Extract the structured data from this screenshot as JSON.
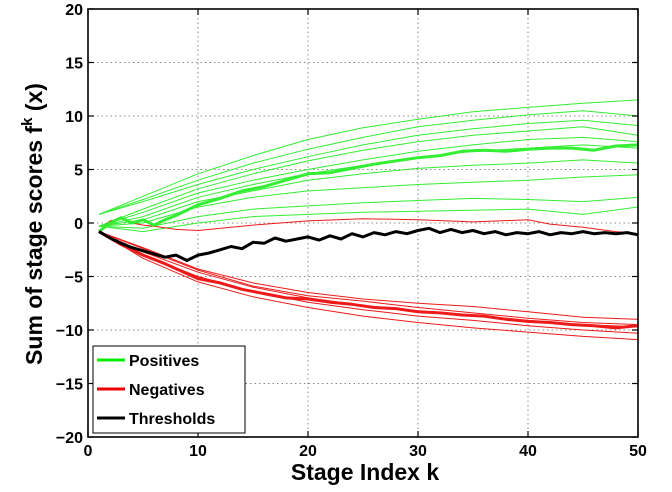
{
  "chart_data": {
    "type": "line",
    "title": "",
    "xlabel": "Stage Index k",
    "ylabel_main": "Sum of stage scores f",
    "ylabel_sup": "k",
    "ylabel_tail": " (x)",
    "xlim": [
      0,
      50
    ],
    "ylim": [
      -20,
      20
    ],
    "xticks": [
      0,
      10,
      20,
      30,
      40,
      50
    ],
    "yticks": [
      -20,
      -15,
      -10,
      -5,
      0,
      5,
      10,
      15,
      20
    ],
    "xtick_labels": [
      "0",
      "10",
      "20",
      "30",
      "40",
      "50"
    ],
    "ytick_labels": [
      "−20",
      "−15",
      "−10",
      "−5",
      "0",
      "5",
      "10",
      "15",
      "20"
    ],
    "grid": true,
    "legend_position": "bottom-left",
    "legend": [
      {
        "label": "Positives",
        "color": "#00ee00"
      },
      {
        "label": "Negatives",
        "color": "#ee0000"
      },
      {
        "label": "Thresholds",
        "color": "#000000"
      }
    ],
    "colors": {
      "positives": "#33ee33",
      "negatives": "#ee1a1a",
      "thresholds": "#000000"
    },
    "series": [
      {
        "group": "positives",
        "bold": false,
        "values": [
          [
            1,
            0.8
          ],
          [
            5,
            2.5
          ],
          [
            10,
            4.6
          ],
          [
            15,
            6.3
          ],
          [
            20,
            7.8
          ],
          [
            25,
            8.9
          ],
          [
            30,
            9.7
          ],
          [
            35,
            10.4
          ],
          [
            40,
            10.8
          ],
          [
            45,
            11.2
          ],
          [
            50,
            11.5
          ]
        ]
      },
      {
        "group": "positives",
        "bold": false,
        "values": [
          [
            1,
            0.8
          ],
          [
            5,
            2.2
          ],
          [
            10,
            4.0
          ],
          [
            15,
            5.6
          ],
          [
            20,
            6.9
          ],
          [
            25,
            8.0
          ],
          [
            30,
            9.0
          ],
          [
            35,
            9.6
          ],
          [
            40,
            10.1
          ],
          [
            45,
            10.5
          ],
          [
            50,
            10.0
          ]
        ]
      },
      {
        "group": "positives",
        "bold": false,
        "values": [
          [
            1,
            0.8
          ],
          [
            5,
            2.0
          ],
          [
            10,
            3.6
          ],
          [
            15,
            5.0
          ],
          [
            20,
            6.2
          ],
          [
            25,
            7.3
          ],
          [
            30,
            8.2
          ],
          [
            35,
            8.8
          ],
          [
            40,
            9.3
          ],
          [
            45,
            9.6
          ],
          [
            50,
            9.1
          ]
        ]
      },
      {
        "group": "positives",
        "bold": false,
        "values": [
          [
            1,
            -0.3
          ],
          [
            5,
            1.3
          ],
          [
            10,
            3.2
          ],
          [
            15,
            4.6
          ],
          [
            20,
            5.8
          ],
          [
            25,
            6.8
          ],
          [
            30,
            7.6
          ],
          [
            35,
            8.2
          ],
          [
            40,
            8.6
          ],
          [
            45,
            9.0
          ],
          [
            50,
            8.2
          ]
        ]
      },
      {
        "group": "positives",
        "bold": false,
        "values": [
          [
            1,
            -0.3
          ],
          [
            5,
            1.0
          ],
          [
            10,
            2.8
          ],
          [
            15,
            4.0
          ],
          [
            20,
            5.0
          ],
          [
            25,
            5.9
          ],
          [
            30,
            6.7
          ],
          [
            35,
            7.3
          ],
          [
            40,
            7.8
          ],
          [
            45,
            8.0
          ],
          [
            50,
            7.6
          ]
        ]
      },
      {
        "group": "positives",
        "bold": false,
        "values": [
          [
            1,
            -0.3
          ],
          [
            5,
            0.6
          ],
          [
            10,
            2.4
          ],
          [
            15,
            3.6
          ],
          [
            20,
            4.6
          ],
          [
            25,
            5.4
          ],
          [
            30,
            6.1
          ],
          [
            35,
            6.7
          ],
          [
            40,
            7.0
          ],
          [
            45,
            7.3
          ],
          [
            50,
            7.0
          ]
        ]
      },
      {
        "group": "positives",
        "bold": false,
        "values": [
          [
            1,
            -0.3
          ],
          [
            5,
            0.3
          ],
          [
            10,
            2.0
          ],
          [
            15,
            3.0
          ],
          [
            20,
            4.0
          ],
          [
            25,
            4.6
          ],
          [
            30,
            5.1
          ],
          [
            35,
            5.4
          ],
          [
            40,
            5.6
          ],
          [
            45,
            5.9
          ],
          [
            50,
            5.6
          ]
        ]
      },
      {
        "group": "positives",
        "bold": false,
        "values": [
          [
            1,
            -0.3
          ],
          [
            5,
            0.0
          ],
          [
            10,
            1.5
          ],
          [
            15,
            2.4
          ],
          [
            20,
            3.0
          ],
          [
            25,
            3.3
          ],
          [
            30,
            3.6
          ],
          [
            35,
            3.8
          ],
          [
            40,
            4.0
          ],
          [
            45,
            4.3
          ],
          [
            50,
            4.5
          ]
        ]
      },
      {
        "group": "positives",
        "bold": false,
        "values": [
          [
            1,
            -0.3
          ],
          [
            5,
            -0.5
          ],
          [
            10,
            0.6
          ],
          [
            15,
            1.3
          ],
          [
            20,
            1.6
          ],
          [
            25,
            1.9
          ],
          [
            30,
            2.1
          ],
          [
            35,
            2.3
          ],
          [
            40,
            2.2
          ],
          [
            45,
            2.0
          ],
          [
            50,
            2.4
          ]
        ]
      },
      {
        "group": "positives",
        "bold": false,
        "values": [
          [
            1,
            -0.3
          ],
          [
            5,
            -0.8
          ],
          [
            10,
            0.0
          ],
          [
            15,
            0.6
          ],
          [
            20,
            0.8
          ],
          [
            25,
            1.0
          ],
          [
            30,
            1.1
          ],
          [
            35,
            1.2
          ],
          [
            40,
            1.3
          ],
          [
            45,
            0.8
          ],
          [
            50,
            1.5
          ]
        ]
      },
      {
        "group": "positives",
        "bold": true,
        "values": [
          [
            1,
            -0.8
          ],
          [
            2,
            0.0
          ],
          [
            3,
            0.5
          ],
          [
            4,
            0.0
          ],
          [
            5,
            0.3
          ],
          [
            6,
            -0.2
          ],
          [
            7,
            0.3
          ],
          [
            8,
            0.7
          ],
          [
            10,
            1.7
          ],
          [
            12,
            2.3
          ],
          [
            14,
            3.0
          ],
          [
            16,
            3.4
          ],
          [
            18,
            4.0
          ],
          [
            20,
            4.6
          ],
          [
            22,
            4.7
          ],
          [
            24,
            5.1
          ],
          [
            26,
            5.5
          ],
          [
            28,
            5.8
          ],
          [
            30,
            6.1
          ],
          [
            32,
            6.3
          ],
          [
            34,
            6.7
          ],
          [
            36,
            6.8
          ],
          [
            38,
            6.7
          ],
          [
            40,
            6.9
          ],
          [
            42,
            7.0
          ],
          [
            44,
            7.0
          ],
          [
            46,
            6.8
          ],
          [
            48,
            7.2
          ],
          [
            50,
            7.3
          ]
        ]
      },
      {
        "group": "negatives",
        "bold": false,
        "values": [
          [
            1,
            -0.8
          ],
          [
            2,
            0.2
          ],
          [
            3,
            0.4
          ],
          [
            4,
            0.0
          ],
          [
            5,
            -0.2
          ],
          [
            6,
            -0.3
          ],
          [
            8,
            -0.6
          ],
          [
            10,
            -0.7
          ],
          [
            15,
            -0.2
          ],
          [
            20,
            0.2
          ],
          [
            25,
            0.4
          ],
          [
            30,
            0.3
          ],
          [
            35,
            0.1
          ],
          [
            40,
            0.3
          ],
          [
            42,
            -0.1
          ],
          [
            45,
            -0.4
          ],
          [
            48,
            -0.8
          ],
          [
            50,
            -1.0
          ]
        ]
      },
      {
        "group": "negatives",
        "bold": false,
        "values": [
          [
            1,
            -0.8
          ],
          [
            5,
            -2.3
          ],
          [
            10,
            -4.3
          ],
          [
            15,
            -5.6
          ],
          [
            20,
            -6.5
          ],
          [
            25,
            -7.1
          ],
          [
            30,
            -7.5
          ],
          [
            35,
            -7.8
          ],
          [
            40,
            -8.3
          ],
          [
            45,
            -8.8
          ],
          [
            50,
            -9.0
          ]
        ]
      },
      {
        "group": "negatives",
        "bold": false,
        "values": [
          [
            1,
            -0.8
          ],
          [
            5,
            -2.7
          ],
          [
            10,
            -4.6
          ],
          [
            15,
            -6.0
          ],
          [
            20,
            -7.0
          ],
          [
            25,
            -7.7
          ],
          [
            30,
            -8.2
          ],
          [
            35,
            -8.6
          ],
          [
            40,
            -9.1
          ],
          [
            45,
            -9.5
          ],
          [
            50,
            -9.7
          ]
        ]
      },
      {
        "group": "negatives",
        "bold": false,
        "values": [
          [
            1,
            -0.8
          ],
          [
            5,
            -3.0
          ],
          [
            10,
            -5.0
          ],
          [
            15,
            -6.4
          ],
          [
            20,
            -7.4
          ],
          [
            25,
            -8.1
          ],
          [
            30,
            -8.7
          ],
          [
            35,
            -9.1
          ],
          [
            40,
            -9.6
          ],
          [
            45,
            -10.0
          ],
          [
            50,
            -10.3
          ]
        ]
      },
      {
        "group": "negatives",
        "bold": false,
        "values": [
          [
            1,
            -0.8
          ],
          [
            5,
            -3.3
          ],
          [
            10,
            -5.5
          ],
          [
            15,
            -6.9
          ],
          [
            20,
            -7.9
          ],
          [
            25,
            -8.7
          ],
          [
            30,
            -9.3
          ],
          [
            35,
            -9.8
          ],
          [
            40,
            -10.2
          ],
          [
            45,
            -10.6
          ],
          [
            50,
            -10.9
          ]
        ]
      },
      {
        "group": "negatives",
        "bold": false,
        "values": [
          [
            1,
            -0.8
          ],
          [
            5,
            -2.4
          ],
          [
            10,
            -4.4
          ],
          [
            15,
            -5.9
          ],
          [
            20,
            -6.8
          ],
          [
            25,
            -7.3
          ],
          [
            30,
            -7.9
          ],
          [
            35,
            -8.4
          ],
          [
            40,
            -8.9
          ],
          [
            45,
            -9.3
          ],
          [
            50,
            -9.5
          ]
        ]
      },
      {
        "group": "negatives",
        "bold": true,
        "values": [
          [
            1,
            -0.8
          ],
          [
            3,
            -2.0
          ],
          [
            5,
            -3.0
          ],
          [
            7,
            -3.8
          ],
          [
            10,
            -5.2
          ],
          [
            12,
            -5.6
          ],
          [
            14,
            -6.2
          ],
          [
            16,
            -6.6
          ],
          [
            18,
            -7.0
          ],
          [
            20,
            -7.1
          ],
          [
            22,
            -7.4
          ],
          [
            24,
            -7.6
          ],
          [
            26,
            -7.9
          ],
          [
            28,
            -8.0
          ],
          [
            30,
            -8.3
          ],
          [
            32,
            -8.4
          ],
          [
            34,
            -8.6
          ],
          [
            36,
            -8.7
          ],
          [
            38,
            -9.0
          ],
          [
            40,
            -9.2
          ],
          [
            42,
            -9.3
          ],
          [
            44,
            -9.5
          ],
          [
            46,
            -9.6
          ],
          [
            48,
            -9.8
          ],
          [
            50,
            -9.6
          ]
        ]
      },
      {
        "group": "thresholds",
        "bold": true,
        "values": [
          [
            1,
            -0.8
          ],
          [
            2,
            -1.4
          ],
          [
            3,
            -1.9
          ],
          [
            4,
            -2.3
          ],
          [
            5,
            -2.6
          ],
          [
            6,
            -2.9
          ],
          [
            7,
            -3.2
          ],
          [
            8,
            -3.0
          ],
          [
            9,
            -3.5
          ],
          [
            10,
            -3.0
          ],
          [
            11,
            -2.8
          ],
          [
            12,
            -2.5
          ],
          [
            13,
            -2.2
          ],
          [
            14,
            -2.4
          ],
          [
            15,
            -1.8
          ],
          [
            16,
            -1.9
          ],
          [
            17,
            -1.4
          ],
          [
            18,
            -1.7
          ],
          [
            19,
            -1.5
          ],
          [
            20,
            -1.3
          ],
          [
            21,
            -1.6
          ],
          [
            22,
            -1.2
          ],
          [
            23,
            -1.5
          ],
          [
            24,
            -1.0
          ],
          [
            25,
            -1.3
          ],
          [
            26,
            -0.9
          ],
          [
            27,
            -1.1
          ],
          [
            28,
            -0.8
          ],
          [
            29,
            -1.0
          ],
          [
            30,
            -0.7
          ],
          [
            31,
            -0.5
          ],
          [
            32,
            -0.9
          ],
          [
            33,
            -0.6
          ],
          [
            34,
            -0.9
          ],
          [
            35,
            -0.7
          ],
          [
            36,
            -1.0
          ],
          [
            37,
            -0.8
          ],
          [
            38,
            -1.1
          ],
          [
            39,
            -0.9
          ],
          [
            40,
            -1.0
          ],
          [
            41,
            -0.8
          ],
          [
            42,
            -1.1
          ],
          [
            43,
            -0.9
          ],
          [
            44,
            -1.0
          ],
          [
            45,
            -0.8
          ],
          [
            46,
            -1.0
          ],
          [
            47,
            -0.9
          ],
          [
            48,
            -1.0
          ],
          [
            49,
            -0.9
          ],
          [
            50,
            -1.1
          ]
        ]
      }
    ]
  }
}
